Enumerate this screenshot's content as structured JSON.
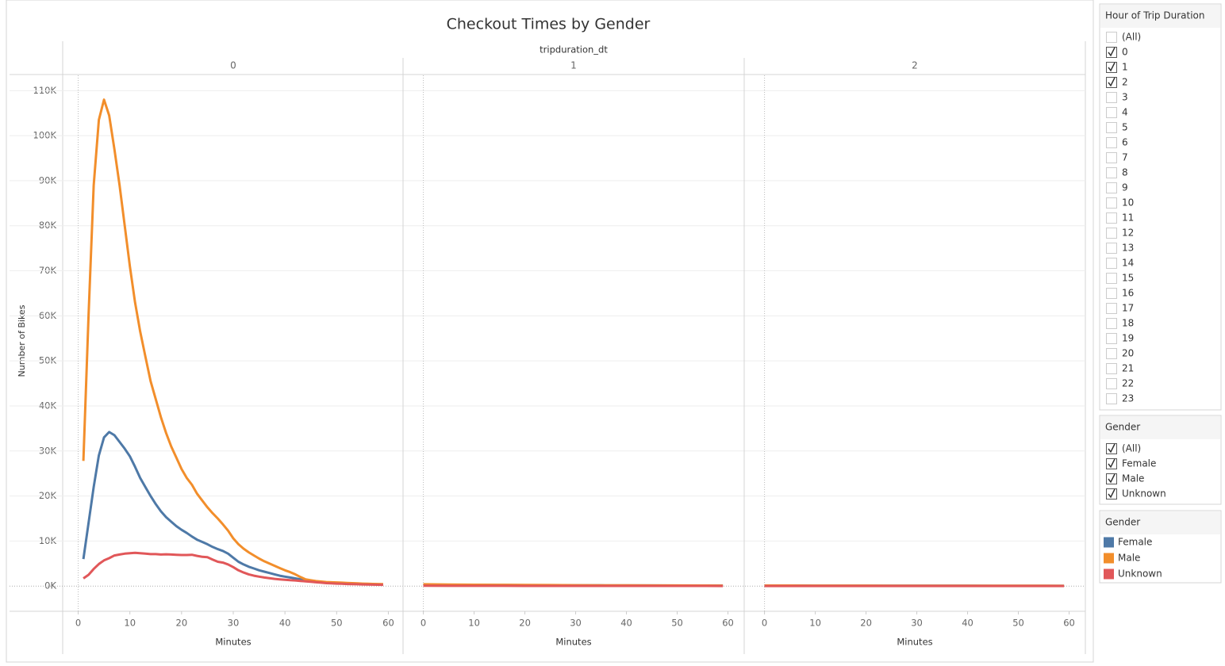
{
  "chart_data": {
    "type": "line",
    "title": "Checkout Times by Gender",
    "facet_label": "tripduration_dt",
    "ylabel": "Number of Bikes",
    "ylim": [
      -5600,
      113400
    ],
    "yticks": [
      {
        "value": 0,
        "label": "0K"
      },
      {
        "value": 10000,
        "label": "10K"
      },
      {
        "value": 20000,
        "label": "20K"
      },
      {
        "value": 30000,
        "label": "30K"
      },
      {
        "value": 40000,
        "label": "40K"
      },
      {
        "value": 50000,
        "label": "50K"
      },
      {
        "value": 60000,
        "label": "60K"
      },
      {
        "value": 70000,
        "label": "70K"
      },
      {
        "value": 80000,
        "label": "80K"
      },
      {
        "value": 90000,
        "label": "90K"
      },
      {
        "value": 100000,
        "label": "100K"
      },
      {
        "value": 110000,
        "label": "110K"
      }
    ],
    "grid": true,
    "panels": [
      {
        "label": "0",
        "xlabel": "Minutes",
        "xlim": [
          -3,
          63
        ],
        "xticks": [
          0,
          10,
          20,
          30,
          40,
          50,
          60
        ],
        "x": [
          1,
          2,
          3,
          4,
          5,
          6,
          7,
          8,
          9,
          10,
          11,
          12,
          13,
          14,
          15,
          16,
          17,
          18,
          19,
          20,
          21,
          22,
          23,
          24,
          25,
          26,
          27,
          28,
          29,
          30,
          31,
          32,
          33,
          34,
          35,
          36,
          37,
          38,
          39,
          40,
          41,
          42,
          43,
          44,
          45,
          46,
          47,
          48,
          49,
          50,
          51,
          52,
          53,
          54,
          55,
          56,
          57,
          58,
          59
        ],
        "series": [
          {
            "name": "Female",
            "color": "#4e79a7",
            "values": [
              6000,
              14000,
              22000,
              29000,
              33000,
              34200,
              33500,
              32000,
              30500,
              28800,
              26500,
              24000,
              22000,
              20000,
              18200,
              16600,
              15300,
              14300,
              13300,
              12500,
              11800,
              11000,
              10300,
              9800,
              9300,
              8700,
              8200,
              7800,
              7200,
              6300,
              5400,
              4800,
              4300,
              3900,
              3500,
              3200,
              2900,
              2600,
              2300,
              2100,
              1900,
              1700,
              1500,
              1300,
              1100,
              950,
              850,
              750,
              700,
              650,
              600,
              550,
              500,
              480,
              450,
              420,
              400,
              380,
              350
            ]
          },
          {
            "name": "Male",
            "color": "#f28e2b",
            "values": [
              27800,
              60000,
              89000,
              103500,
              108000,
              104500,
              97000,
              89000,
              80000,
              71000,
              63000,
              56500,
              51000,
              45500,
              41500,
              37500,
              34000,
              31000,
              28500,
              26000,
              24000,
              22500,
              20500,
              19000,
              17500,
              16200,
              15000,
              13700,
              12300,
              10600,
              9300,
              8300,
              7500,
              6800,
              6100,
              5500,
              5000,
              4500,
              4000,
              3500,
              3100,
              2600,
              2000,
              1500,
              1300,
              1100,
              1000,
              900,
              850,
              800,
              750,
              700,
              650,
              600,
              550,
              500,
              480,
              450,
              420
            ]
          },
          {
            "name": "Unknown",
            "color": "#e15759",
            "values": [
              1700,
              2500,
              3800,
              4900,
              5700,
              6200,
              6800,
              7000,
              7200,
              7300,
              7400,
              7300,
              7200,
              7100,
              7100,
              7000,
              7050,
              7000,
              6950,
              6900,
              6900,
              6950,
              6700,
              6500,
              6400,
              5900,
              5400,
              5200,
              4800,
              4200,
              3500,
              3000,
              2600,
              2300,
              2100,
              1900,
              1750,
              1600,
              1500,
              1400,
              1300,
              1250,
              1150,
              1050,
              950,
              850,
              750,
              650,
              600,
              550,
              500,
              450,
              420,
              400,
              370,
              350,
              320,
              300,
              280
            ]
          }
        ]
      },
      {
        "label": "1",
        "xlabel": "Minutes",
        "xlim": [
          -4,
          63.2
        ],
        "xticks": [
          0,
          10,
          20,
          30,
          40,
          50,
          60
        ],
        "x": [
          0,
          5,
          10,
          15,
          20,
          25,
          30,
          35,
          40,
          45,
          50,
          55,
          59
        ],
        "series": [
          {
            "name": "Female",
            "color": "#4e79a7",
            "values": [
              300,
              280,
              250,
              230,
              210,
              190,
              170,
              150,
              140,
              130,
              120,
              110,
              100
            ]
          },
          {
            "name": "Male",
            "color": "#f28e2b",
            "values": [
              400,
              350,
              300,
              280,
              250,
              220,
              200,
              180,
              160,
              140,
              130,
              120,
              110
            ]
          },
          {
            "name": "Unknown",
            "color": "#e15759",
            "values": [
              60,
              55,
              50,
              45,
              40,
              38,
              35,
              32,
              30,
              28,
              26,
              25,
              24
            ]
          }
        ]
      },
      {
        "label": "2",
        "xlabel": "Minutes",
        "xlim": [
          -4,
          63.2
        ],
        "xticks": [
          0,
          10,
          20,
          30,
          40,
          50,
          60
        ],
        "x": [
          0,
          5,
          10,
          15,
          20,
          25,
          30,
          35,
          40,
          45,
          50,
          55,
          59
        ],
        "series": [
          {
            "name": "Female",
            "color": "#4e79a7",
            "values": [
              100,
              95,
              90,
              85,
              80,
              75,
              70,
              65,
              60,
              55,
              50,
              48,
              45
            ]
          },
          {
            "name": "Male",
            "color": "#f28e2b",
            "values": [
              120,
              115,
              110,
              100,
              95,
              90,
              85,
              80,
              75,
              70,
              65,
              60,
              55
            ]
          },
          {
            "name": "Unknown",
            "color": "#e15759",
            "values": [
              20,
              19,
              18,
              17,
              16,
              15,
              14,
              13,
              12,
              11,
              10,
              10,
              9
            ]
          }
        ]
      }
    ]
  },
  "filters": [
    {
      "title": "Hour of Trip Duration",
      "options": [
        {
          "label": "(All)",
          "checked": false
        },
        {
          "label": "0",
          "checked": true
        },
        {
          "label": "1",
          "checked": true
        },
        {
          "label": "2",
          "checked": true
        },
        {
          "label": "3",
          "checked": false
        },
        {
          "label": "4",
          "checked": false
        },
        {
          "label": "5",
          "checked": false
        },
        {
          "label": "6",
          "checked": false
        },
        {
          "label": "7",
          "checked": false
        },
        {
          "label": "8",
          "checked": false
        },
        {
          "label": "9",
          "checked": false
        },
        {
          "label": "10",
          "checked": false
        },
        {
          "label": "11",
          "checked": false
        },
        {
          "label": "12",
          "checked": false
        },
        {
          "label": "13",
          "checked": false
        },
        {
          "label": "14",
          "checked": false
        },
        {
          "label": "15",
          "checked": false
        },
        {
          "label": "16",
          "checked": false
        },
        {
          "label": "17",
          "checked": false
        },
        {
          "label": "18",
          "checked": false
        },
        {
          "label": "19",
          "checked": false
        },
        {
          "label": "20",
          "checked": false
        },
        {
          "label": "21",
          "checked": false
        },
        {
          "label": "22",
          "checked": false
        },
        {
          "label": "23",
          "checked": false
        }
      ]
    },
    {
      "title": "Gender",
      "options": [
        {
          "label": "(All)",
          "checked": true
        },
        {
          "label": "Female",
          "checked": true
        },
        {
          "label": "Male",
          "checked": true
        },
        {
          "label": "Unknown",
          "checked": true
        }
      ]
    }
  ],
  "legend": {
    "title": "Gender"
  }
}
